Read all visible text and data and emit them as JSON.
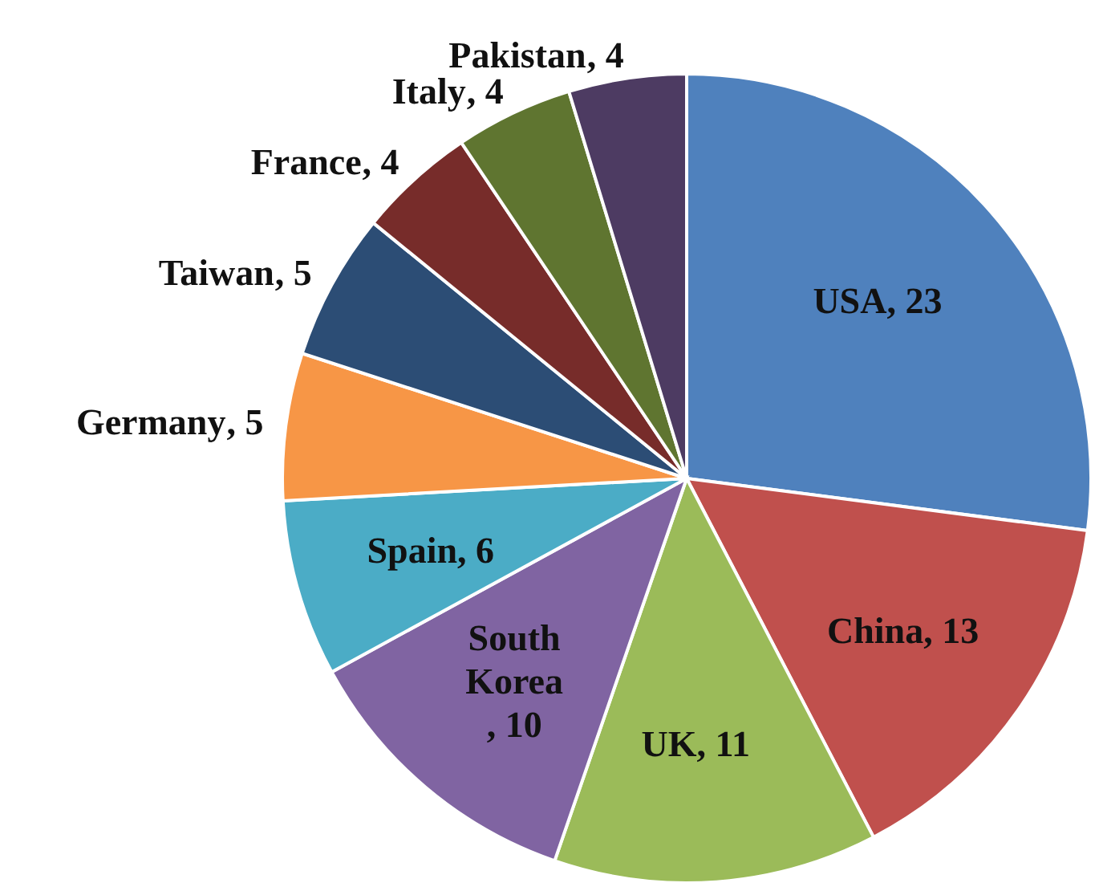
{
  "chart_data": {
    "type": "pie",
    "categories": [
      "USA",
      "China",
      "UK",
      "South Korea",
      "Spain",
      "Germany",
      "Taiwan",
      "France",
      "Italy",
      "Pakistan"
    ],
    "values": [
      23,
      13,
      11,
      10,
      6,
      5,
      5,
      4,
      4,
      4
    ],
    "colors": [
      "#4f81bd",
      "#c0504d",
      "#9bbb59",
      "#8064a2",
      "#4bacc6",
      "#f79646",
      "#2c4d75",
      "#772c2a",
      "#5f7530",
      "#4d3b62"
    ],
    "value_labels": [
      ", 23",
      ", 13",
      ", 11",
      ", 10",
      ", 6",
      ", 5",
      ", 5",
      ", 4",
      ", 4",
      ", 4"
    ]
  }
}
